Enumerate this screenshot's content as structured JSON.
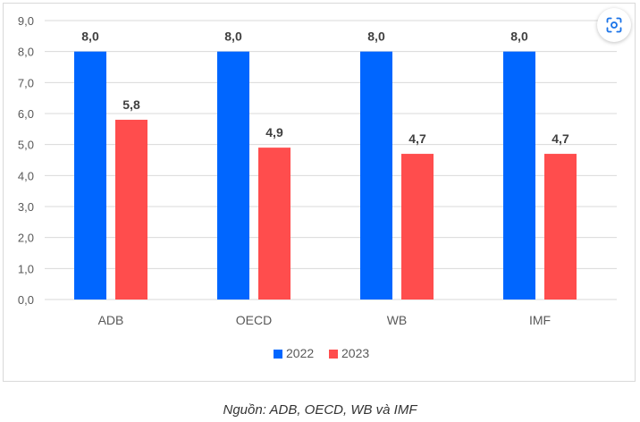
{
  "chart_data": {
    "type": "bar",
    "categories": [
      "ADB",
      "OECD",
      "WB",
      "IMF"
    ],
    "series": [
      {
        "name": "2022",
        "values": [
          8.0,
          8.0,
          8.0,
          8.0
        ],
        "labels": [
          "8,0",
          "8,0",
          "8,0",
          "8,0"
        ],
        "color": "#0066ff"
      },
      {
        "name": "2023",
        "values": [
          5.8,
          4.9,
          4.7,
          4.7
        ],
        "labels": [
          "5,8",
          "4,9",
          "4,7",
          "4,7"
        ],
        "color": "#ff4d4d"
      }
    ],
    "ylim": [
      0,
      9
    ],
    "yticks": [
      "0,0",
      "1,0",
      "2,0",
      "3,0",
      "4,0",
      "5,0",
      "6,0",
      "7,0",
      "8,0",
      "9,0"
    ],
    "grid": true,
    "legend": "bottom-center"
  },
  "colors": {
    "grid": "#d9d9d9",
    "axis_text": "#595959",
    "label_text": "#404040",
    "lens_icon": "#1a73e8"
  },
  "icons": {
    "lens": "lens-icon"
  },
  "caption": "Nguồn: ADB, OECD, WB và IMF"
}
